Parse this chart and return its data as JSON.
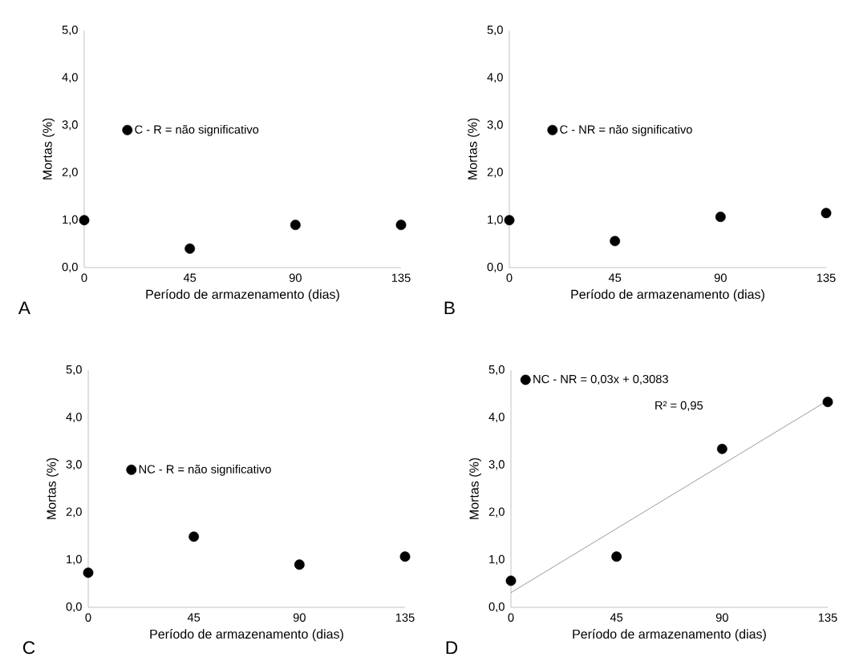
{
  "chart_data": [
    {
      "type": "scatter",
      "xlabel": "Período de armazenamento (dias)",
      "ylabel": "Mortas (%)",
      "xlim": [
        0,
        135
      ],
      "ylim": [
        0,
        5
      ],
      "xticks": [
        0,
        45,
        90,
        135
      ],
      "yticks": [
        {
          "value": 0,
          "label": "0,0"
        },
        {
          "value": 1,
          "label": "1,0"
        },
        {
          "value": 2,
          "label": "2,0"
        },
        {
          "value": 3,
          "label": "3,0"
        },
        {
          "value": 4,
          "label": "4,0"
        },
        {
          "value": 5,
          "label": "5,0"
        }
      ],
      "marker": "circle",
      "legend": "left",
      "annotations": [
        "A"
      ],
      "series": [
        {
          "name": "C - R = não significativo",
          "color": "#000000",
          "x": [
            0,
            45,
            90,
            135
          ],
          "values": [
            1.0,
            0.4,
            0.9,
            0.9
          ]
        }
      ]
    },
    {
      "type": "scatter",
      "xlabel": "Período de armazenamento (dias)",
      "ylabel": "Mortas (%)",
      "xlim": [
        0,
        135
      ],
      "ylim": [
        0,
        5
      ],
      "xticks": [
        0,
        45,
        90,
        135
      ],
      "yticks": [
        {
          "value": 0,
          "label": "0,0"
        },
        {
          "value": 1,
          "label": "1,0"
        },
        {
          "value": 2,
          "label": "2,0"
        },
        {
          "value": 3,
          "label": "3,0"
        },
        {
          "value": 4,
          "label": "4,0"
        },
        {
          "value": 5,
          "label": "5,0"
        }
      ],
      "marker": "circle",
      "legend": "left",
      "annotations": [
        "B"
      ],
      "series": [
        {
          "name": "C - NR = não significativo",
          "color": "#000000",
          "x": [
            0,
            45,
            90,
            135
          ],
          "values": [
            1.0,
            0.56,
            1.07,
            1.15
          ]
        }
      ]
    },
    {
      "type": "scatter",
      "xlabel": "Período de armazenamento (dias)",
      "ylabel": "Mortas (%)",
      "xlim": [
        0,
        135
      ],
      "ylim": [
        0,
        5
      ],
      "xticks": [
        0,
        45,
        90,
        135
      ],
      "yticks": [
        {
          "value": 0,
          "label": "0,0"
        },
        {
          "value": 1,
          "label": "1,0"
        },
        {
          "value": 2,
          "label": "2,0"
        },
        {
          "value": 3,
          "label": "3,0"
        },
        {
          "value": 4,
          "label": "4,0"
        },
        {
          "value": 5,
          "label": "5,0"
        }
      ],
      "marker": "circle",
      "legend": "left",
      "annotations": [
        "C"
      ],
      "series": [
        {
          "name": "NC - R = não significativo",
          "color": "#000000",
          "x": [
            0,
            45,
            90,
            135
          ],
          "values": [
            0.73,
            1.49,
            0.9,
            1.07
          ]
        }
      ]
    },
    {
      "type": "scatter",
      "xlabel": "Período de armazenamento (dias)",
      "ylabel": "Mortas (%)",
      "xlim": [
        0,
        135
      ],
      "ylim": [
        0,
        5
      ],
      "xticks": [
        0,
        45,
        90,
        135
      ],
      "yticks": [
        {
          "value": 0,
          "label": "0,0"
        },
        {
          "value": 1,
          "label": "1,0"
        },
        {
          "value": 2,
          "label": "2,0"
        },
        {
          "value": 3,
          "label": "3,0"
        },
        {
          "value": 4,
          "label": "4,0"
        },
        {
          "value": 5,
          "label": "5,0"
        }
      ],
      "marker": "circle",
      "legend": "top left",
      "annotations": [
        "D",
        "R² = 0,95"
      ],
      "series": [
        {
          "name": "NC - NR = 0,03x + 0,3083",
          "color": "#000000",
          "x": [
            0,
            45,
            90,
            135
          ],
          "values": [
            0.56,
            1.07,
            3.34,
            4.33
          ]
        },
        {
          "type": "line",
          "marker": "none",
          "color": "#404040",
          "x": [
            0,
            135
          ],
          "values": [
            0.31,
            4.36
          ]
        }
      ]
    }
  ]
}
